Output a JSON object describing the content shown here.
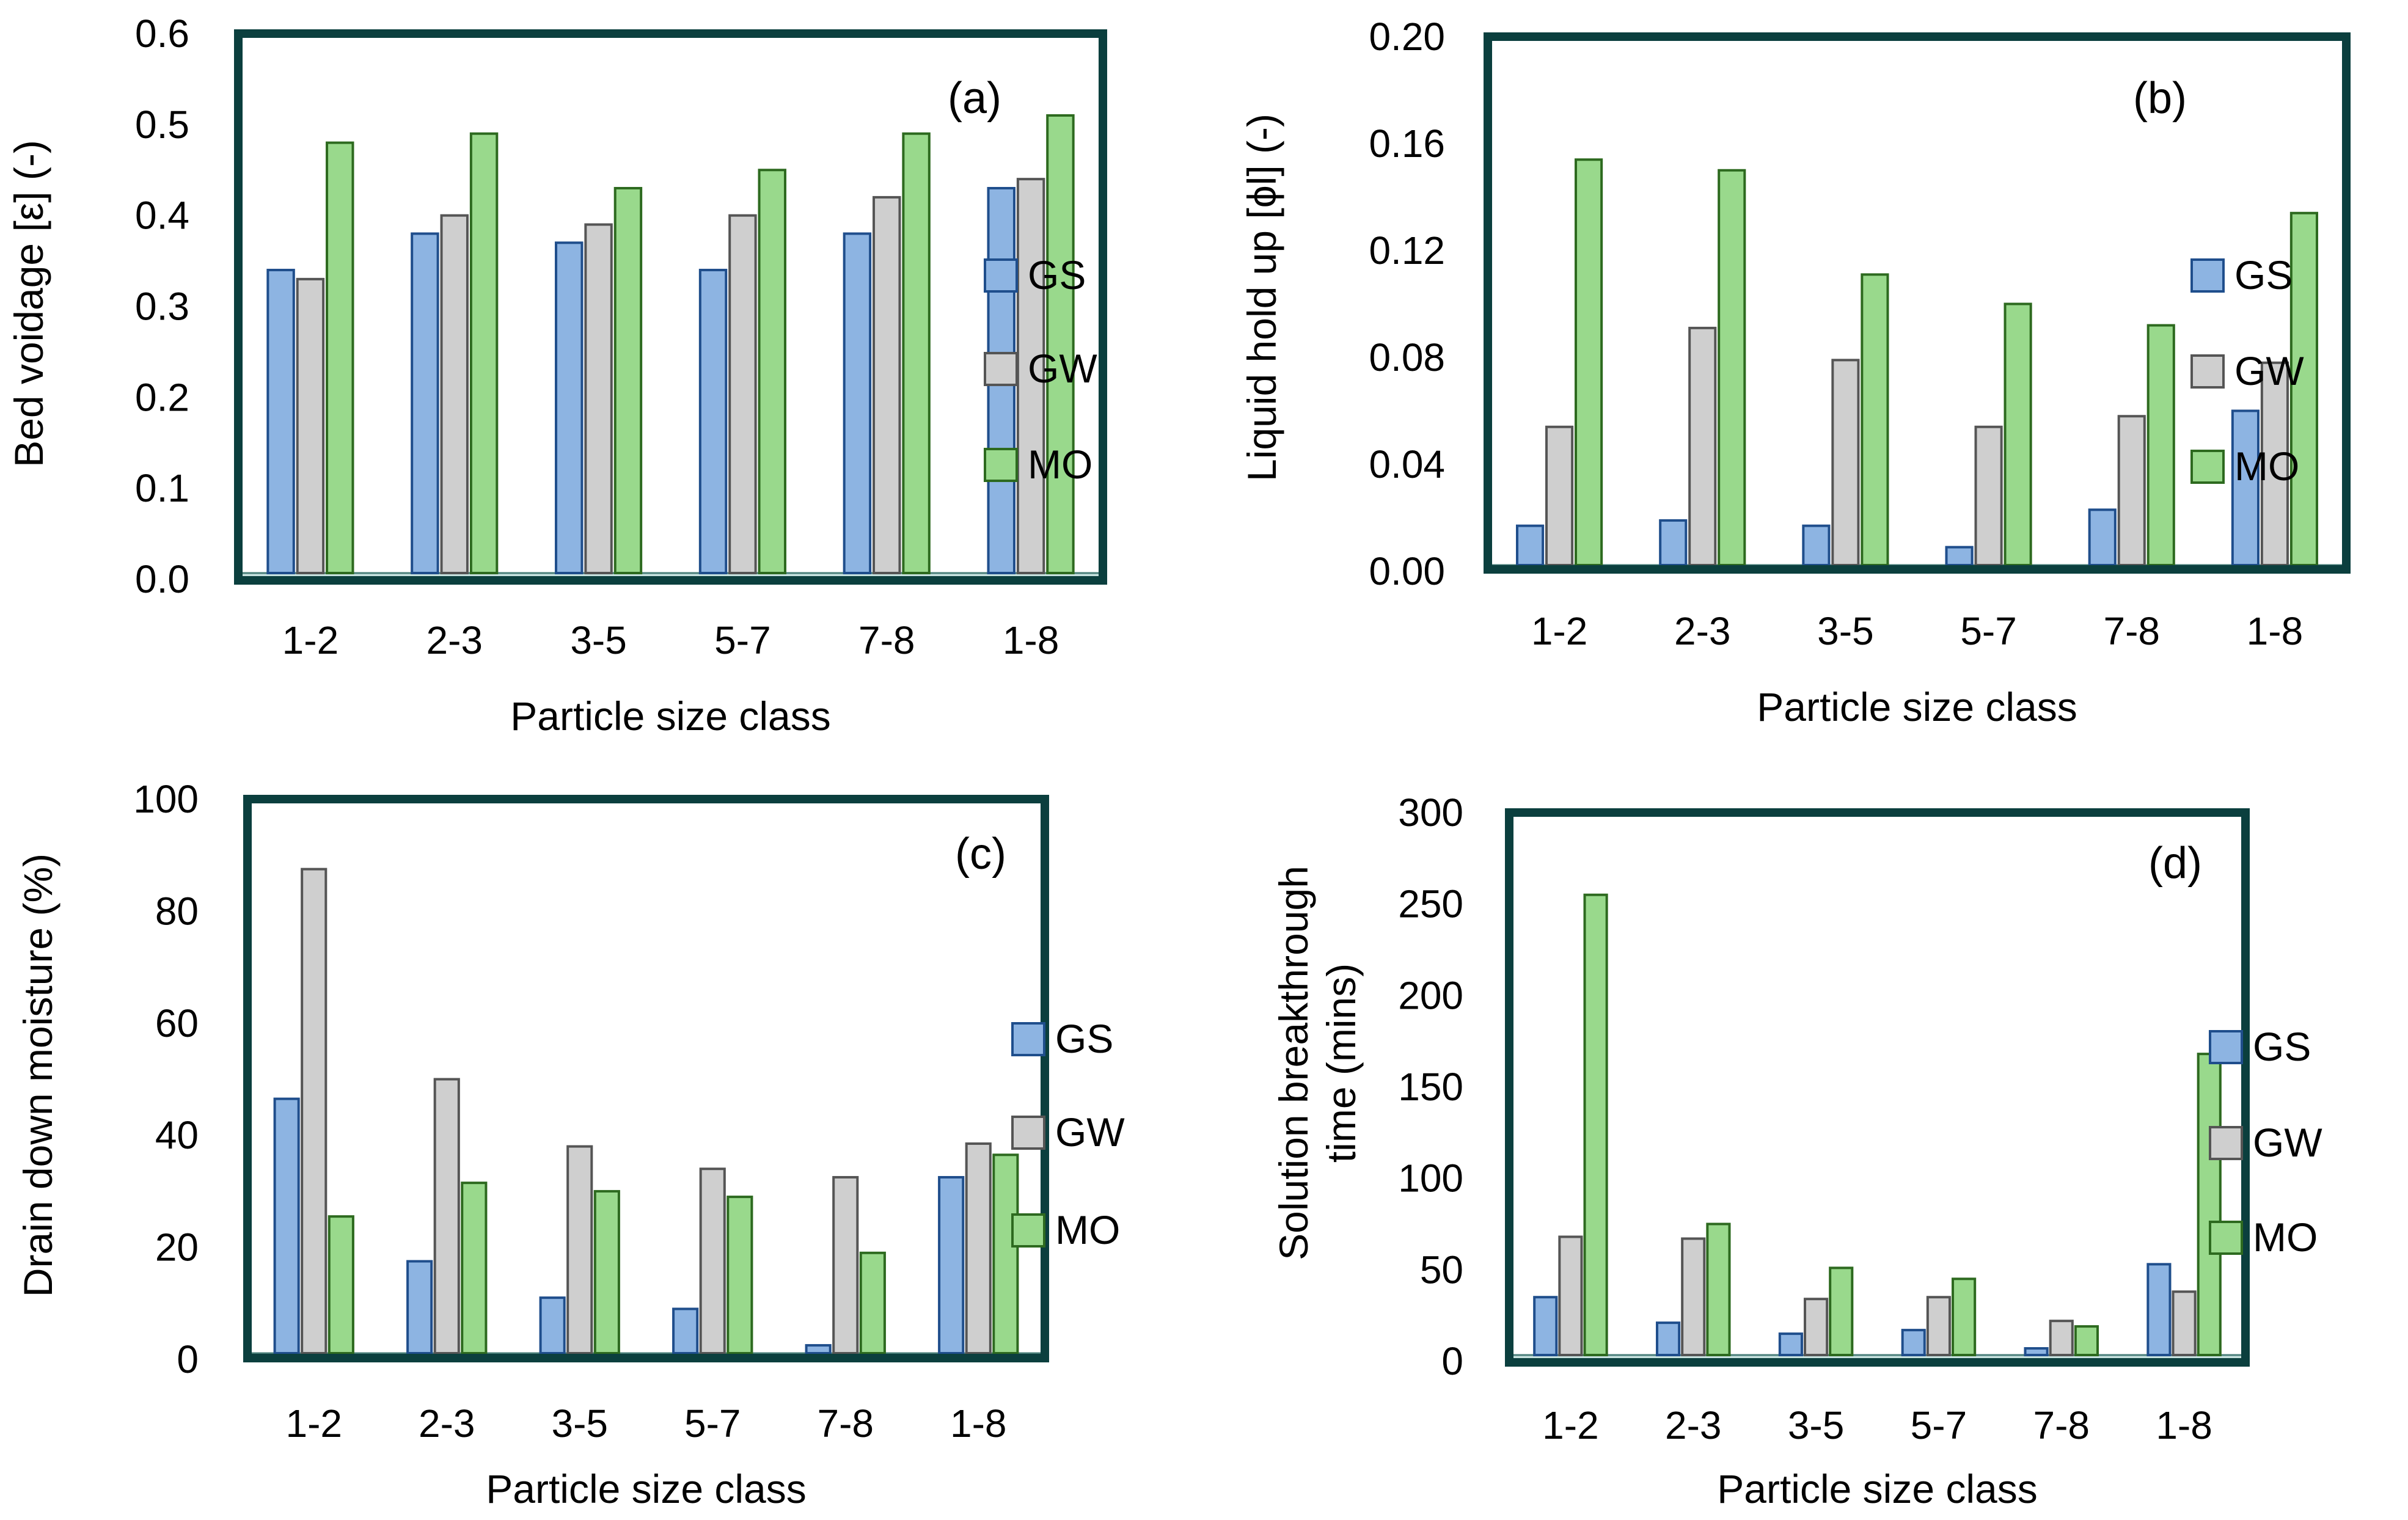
{
  "categories": [
    "1-2",
    "2-3",
    "3-5",
    "5-7",
    "7-8",
    "1-8"
  ],
  "legend": [
    "GS",
    "GW",
    "MO"
  ],
  "colors": {
    "frame": "#0b3f3e",
    "GS_fill": "#8db4e2",
    "GS_stroke": "#1f4e8c",
    "GW_fill": "#cfcfcf",
    "GW_stroke": "#555555",
    "MO_fill": "#99d98c",
    "MO_stroke": "#2d6a1f",
    "baseline_fill": "#c7e2df"
  },
  "chart_data": [
    {
      "type": "bar",
      "panel": "(a)",
      "title": "",
      "xlabel": "Particle size class",
      "ylabel": "Bed voidage [ε] (-)",
      "ylim": [
        0,
        0.6
      ],
      "yticks": [
        "0.0",
        "0.1",
        "0.2",
        "0.3",
        "0.4",
        "0.5",
        "0.6"
      ],
      "categories": [
        "1-2",
        "2-3",
        "3-5",
        "5-7",
        "7-8",
        "1-8"
      ],
      "series": [
        {
          "name": "GS",
          "values": [
            0.34,
            0.38,
            0.37,
            0.34,
            0.38,
            0.43
          ]
        },
        {
          "name": "GW",
          "values": [
            0.33,
            0.4,
            0.39,
            0.4,
            0.42,
            0.44
          ]
        },
        {
          "name": "MO",
          "values": [
            0.48,
            0.49,
            0.43,
            0.45,
            0.49,
            0.51
          ]
        }
      ]
    },
    {
      "type": "bar",
      "panel": "(b)",
      "title": "",
      "xlabel": "Particle size class",
      "ylabel": "Liquid hold up [ϕl] (-)",
      "ylim": [
        0,
        0.2
      ],
      "yticks": [
        "0.00",
        "0.04",
        "0.08",
        "0.12",
        "0.16",
        "0.20"
      ],
      "categories": [
        "1-2",
        "2-3",
        "3-5",
        "5-7",
        "7-8",
        "1-8"
      ],
      "series": [
        {
          "name": "GS",
          "values": [
            0.017,
            0.019,
            0.017,
            0.009,
            0.023,
            0.06
          ]
        },
        {
          "name": "GW",
          "values": [
            0.054,
            0.091,
            0.079,
            0.054,
            0.058,
            0.078
          ]
        },
        {
          "name": "MO",
          "values": [
            0.154,
            0.15,
            0.111,
            0.1,
            0.092,
            0.134
          ]
        }
      ]
    },
    {
      "type": "bar",
      "panel": "(c)",
      "title": "",
      "xlabel": "Particle size class",
      "ylabel": "Drain down moisture (%)",
      "ylim": [
        0,
        100
      ],
      "yticks": [
        "0",
        "20",
        "40",
        "60",
        "80",
        "100"
      ],
      "categories": [
        "1-2",
        "2-3",
        "3-5",
        "5-7",
        "7-8",
        "1-8"
      ],
      "series": [
        {
          "name": "GS",
          "values": [
            46.5,
            17.5,
            11,
            9,
            2.5,
            32.5
          ]
        },
        {
          "name": "GW",
          "values": [
            87.5,
            50,
            38,
            34,
            32.5,
            38.5
          ]
        },
        {
          "name": "MO",
          "values": [
            25.5,
            31.5,
            30,
            29,
            19,
            36.5
          ]
        }
      ]
    },
    {
      "type": "bar",
      "panel": "(d)",
      "title": "",
      "xlabel": "Particle size class",
      "ylabel": "Solution breakthrough time (mins)",
      "ylabel_lines": [
        "Solution breakthrough",
        "time (mins)"
      ],
      "ylim": [
        0,
        300
      ],
      "yticks": [
        "0",
        "50",
        "100",
        "150",
        "200",
        "250",
        "300"
      ],
      "categories": [
        "1-2",
        "2-3",
        "3-5",
        "5-7",
        "7-8",
        "1-8"
      ],
      "series": [
        {
          "name": "GS",
          "values": [
            35,
            21,
            15,
            17,
            7,
            53
          ]
        },
        {
          "name": "GW",
          "values": [
            68,
            67,
            34,
            35,
            22,
            38
          ]
        },
        {
          "name": "MO",
          "values": [
            255,
            75,
            51,
            45,
            19,
            168
          ]
        }
      ]
    }
  ]
}
